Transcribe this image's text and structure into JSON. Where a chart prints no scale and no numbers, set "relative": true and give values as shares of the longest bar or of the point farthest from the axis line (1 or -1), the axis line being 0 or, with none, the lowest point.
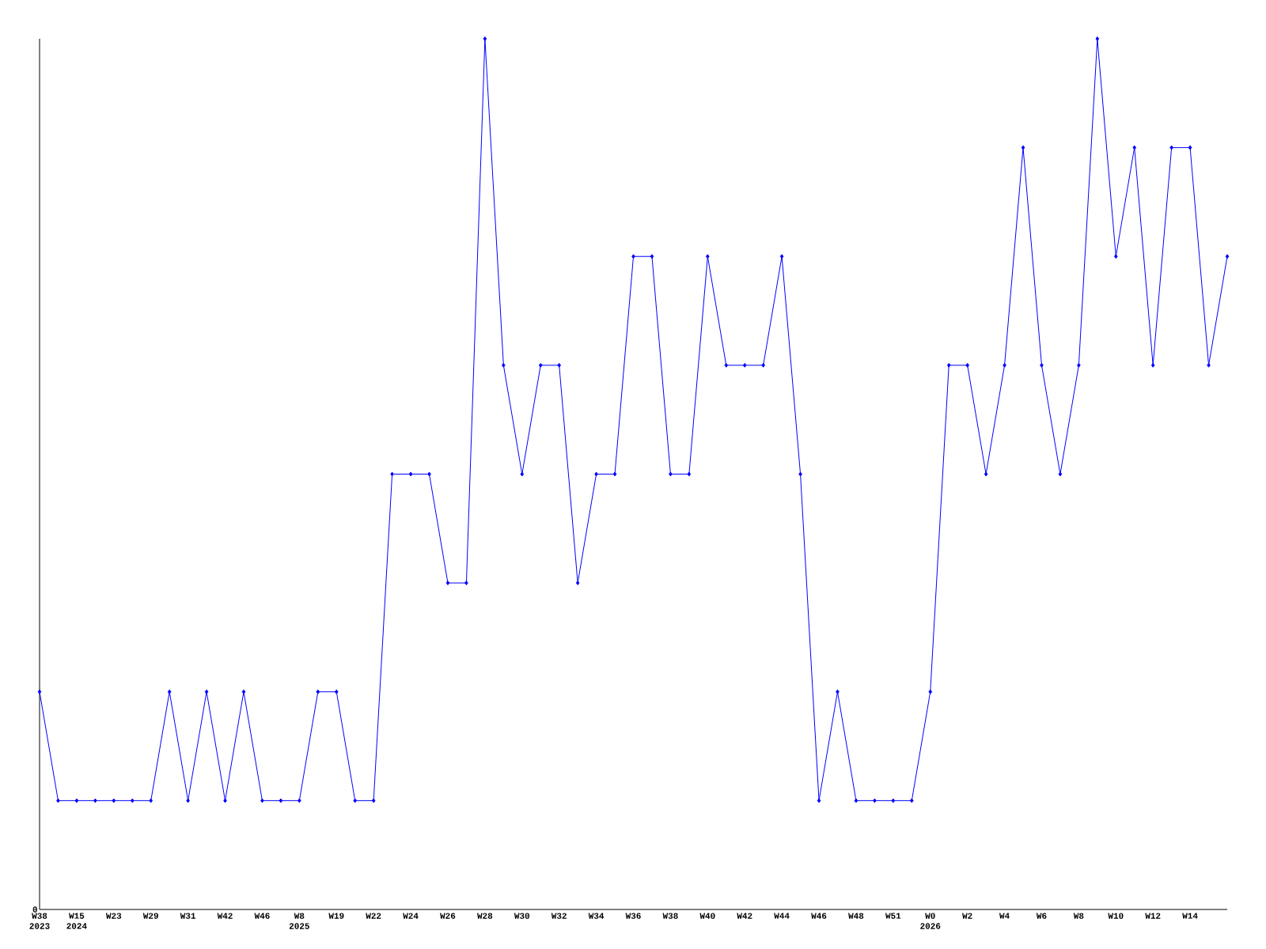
{
  "chart_data": {
    "type": "line",
    "relative": true,
    "color": "#0000ff",
    "marker": "diamond",
    "annotations": [
      "0"
    ],
    "categories": [
      "W38 2023",
      null,
      "W15 2024",
      null,
      "W23",
      null,
      "W29",
      null,
      "W31",
      null,
      "W42",
      null,
      "W46",
      null,
      "W8 2025",
      null,
      "W19",
      null,
      "W22",
      null,
      "W24",
      null,
      "W26",
      null,
      "W28",
      null,
      "W30",
      null,
      "W32",
      null,
      "W34",
      null,
      "W36",
      null,
      "W38",
      null,
      "W40",
      null,
      "W42",
      null,
      "W44",
      null,
      "W46",
      null,
      "W48",
      null,
      "W51",
      null,
      "W0 2026",
      null,
      "W2",
      null,
      "W4",
      null,
      "W6",
      null,
      "W8",
      null,
      "W10",
      null,
      "W12",
      null,
      "W14",
      null,
      null
    ],
    "values": [
      0.25,
      0.125,
      0.125,
      0.125,
      0.125,
      0.125,
      0.125,
      0.25,
      0.125,
      0.25,
      0.125,
      0.25,
      0.125,
      0.125,
      0.125,
      0.25,
      0.25,
      0.125,
      0.125,
      0.5,
      0.5,
      0.5,
      0.375,
      0.375,
      1,
      0.625,
      0.5,
      0.625,
      0.625,
      0.375,
      0.5,
      0.5,
      0.75,
      0.75,
      0.5,
      0.5,
      0.75,
      0.625,
      0.625,
      0.625,
      0.75,
      0.5,
      0.125,
      0.25,
      0.125,
      0.125,
      0.125,
      0.125,
      0.25,
      0.625,
      0.625,
      0.5,
      0.625,
      0.875,
      0.625,
      0.5,
      0.625,
      1,
      0.75,
      0.875,
      0.625,
      0.875,
      0.875,
      0.625,
      0.75
    ]
  }
}
